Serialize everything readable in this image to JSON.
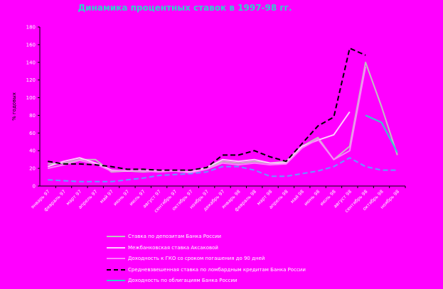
{
  "chart_data": {
    "type": "line",
    "title": "Динамика процентных ставок в 1997-98 гг.",
    "ylabel": "% годовых",
    "ylim": [
      0,
      180
    ],
    "yticks": [
      0,
      20,
      40,
      60,
      80,
      100,
      120,
      140,
      160,
      180
    ],
    "categories": [
      "январь 97",
      "февраль 97",
      "март 97",
      "апрель 97",
      "май 97",
      "июнь 97",
      "июль 97",
      "август 97",
      "сентябрь 97",
      "октябрь 97",
      "ноябрь 97",
      "декабрь 97",
      "январь 98",
      "февраль 98",
      "март 98",
      "апрель 98",
      "май 98",
      "июнь 98",
      "июль 98",
      "август 98",
      "сентябрь 98",
      "октябрь 98",
      "ноябрь 98"
    ],
    "series": [
      {
        "name": "Ставка по депозитам Банка России",
        "color": "#c0c0c0",
        "dash": false,
        "values": [
          25,
          26,
          30,
          30,
          16,
          17,
          16,
          17,
          17,
          15,
          20,
          28,
          26,
          28,
          26,
          28,
          45,
          55,
          30,
          45,
          140,
          90,
          35
        ]
      },
      {
        "name": "Межбанковская ставка Аксаковой",
        "color": "#ffccff",
        "dash": false,
        "values": [
          22,
          28,
          32,
          26,
          18,
          17,
          18,
          17,
          17,
          16,
          21,
          30,
          28,
          30,
          26,
          26,
          45,
          52,
          58,
          84,
          null,
          null,
          null
        ]
      },
      {
        "name": "Доходность к ГКО со сроком погашения до 90 дней",
        "color": "#ff80ff",
        "dash": false,
        "values": [
          20,
          24,
          29,
          25,
          17,
          18,
          17,
          16,
          17,
          15,
          19,
          26,
          24,
          26,
          24,
          25,
          43,
          53,
          30,
          40,
          135,
          null,
          null
        ]
      },
      {
        "name": "Средневзвешенная ставка по ломбардным кредитам Банка России",
        "color": "#000000",
        "dash": true,
        "values": [
          28,
          25,
          25,
          24,
          22,
          19,
          19,
          18,
          18,
          18,
          21,
          35,
          35,
          40,
          33,
          28,
          48,
          68,
          78,
          156,
          148,
          null,
          null
        ]
      },
      {
        "name": "",
        "color": "#6699ff",
        "dash": true,
        "values": [
          7,
          6,
          5,
          5,
          5,
          7,
          9,
          12,
          13,
          14,
          16,
          22,
          22,
          18,
          11,
          11,
          14,
          17,
          22,
          32,
          22,
          18,
          18
        ]
      },
      {
        "name": "Доходность по облигациям Банка России",
        "color": "#33cccc",
        "dash": false,
        "values": [
          null,
          null,
          null,
          null,
          null,
          null,
          null,
          null,
          null,
          null,
          null,
          null,
          null,
          null,
          null,
          null,
          null,
          null,
          null,
          null,
          80,
          72,
          38
        ]
      }
    ],
    "legend_position": "bottom",
    "grid": false
  }
}
